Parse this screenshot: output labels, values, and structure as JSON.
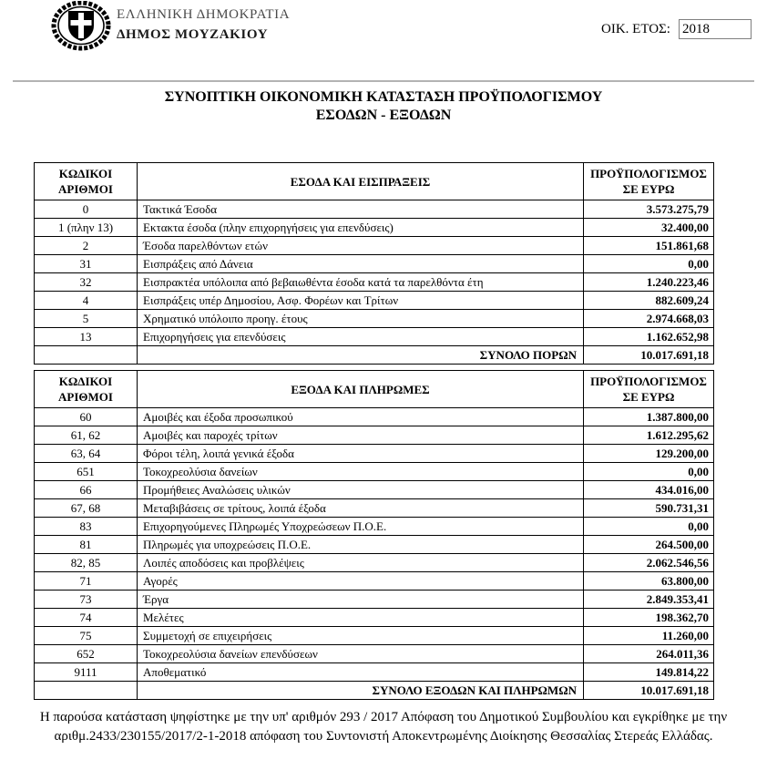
{
  "header": {
    "republic": "ΕΛΛΗΝΙΚΗ ΔΗΜΟΚΡΑΤΙΑ",
    "municipality": "ΔΗΜΟΣ ΜΟΥΖΑΚΙΟΥ",
    "fiscal_year_label": "ΟΙΚ. ΕΤΟΣ:",
    "fiscal_year_value": "2018"
  },
  "title": {
    "line1": "ΣΥΝΟΠΤΙΚΗ ΟΙΚΟΝΟΜΙΚΗ ΚΑΤΑΣΤΑΣΗ ΠΡΟΫΠΟΛΟΓΙΣΜΟΥ",
    "line2": "ΕΣΟΔΩΝ - ΕΞΟΔΩΝ"
  },
  "income_table": {
    "col_code": "ΚΩΔΙΚΟΙ\nΑΡΙΘΜΟΙ",
    "col_desc": "ΕΣΟΔΑ ΚΑΙ ΕΙΣΠΡΑΞΕΙΣ",
    "col_amount": "ΠΡΟΫΠΟΛΟΓΙΣΜΟΣ\nΣΕ ΕΥΡΩ",
    "rows": [
      {
        "code": "0",
        "label": "Τακτικά Έσοδα",
        "amount": "3.573.275,79"
      },
      {
        "code": "1 (πλην 13)",
        "label": "Εκτακτα έσοδα (πλην επιχορηγήσεις για επενδύσεις)",
        "amount": "32.400,00"
      },
      {
        "code": "2",
        "label": "Έσοδα παρελθόντων ετών",
        "amount": "151.861,68"
      },
      {
        "code": "31",
        "label": "Εισπράξεις από Δάνεια",
        "amount": "0,00"
      },
      {
        "code": "32",
        "label": "Εισπρακτέα υπόλοιπα από βεβαιωθέντα έσοδα κατά τα παρελθόντα έτη",
        "amount": "1.240.223,46"
      },
      {
        "code": "4",
        "label": "Εισπράξεις υπέρ Δημοσίου, Ασφ. Φορέων και Τρίτων",
        "amount": "882.609,24"
      },
      {
        "code": "5",
        "label": "Χρηματικό υπόλοιπο προηγ. έτους",
        "amount": "2.974.668,03"
      },
      {
        "code": "13",
        "label": "Επιχορηγήσεις για επενδύσεις",
        "amount": "1.162.652,98"
      }
    ],
    "total_label": "ΣΥΝΟΛΟ ΠΟΡΩΝ",
    "total_amount": "10.017.691,18"
  },
  "expense_table": {
    "col_code": "ΚΩΔΙΚΟΙ\nΑΡΙΘΜΟΙ",
    "col_desc": "ΕΞΟΔΑ ΚΑΙ ΠΛΗΡΩΜΕΣ",
    "col_amount": "ΠΡΟΫΠΟΛΟΓΙΣΜΟΣ\nΣΕ ΕΥΡΩ",
    "rows": [
      {
        "code": "60",
        "label": "Αμοιβές και έξοδα προσωπικού",
        "amount": "1.387.800,00"
      },
      {
        "code": "61, 62",
        "label": "Αμοιβές και παροχές τρίτων",
        "amount": "1.612.295,62"
      },
      {
        "code": "63, 64",
        "label": "Φόροι  τέλη, λοιπά γενικά έξοδα",
        "amount": "129.200,00"
      },
      {
        "code": "651",
        "label": "Τοκοχρεολύσια δανείων",
        "amount": "0,00"
      },
      {
        "code": "66",
        "label": "Προμήθειες  Αναλώσεις υλικών",
        "amount": "434.016,00"
      },
      {
        "code": "67, 68",
        "label": "Μεταβιβάσεις σε τρίτους, λοιπά έξοδα",
        "amount": "590.731,31"
      },
      {
        "code": "83",
        "label": "Επιχορηγούμενες Πληρωμές Υποχρεώσεων Π.Ο.Ε.",
        "amount": "0,00"
      },
      {
        "code": "81",
        "label": "Πληρωμές για υποχρεώσεις Π.Ο.Ε.",
        "amount": "264.500,00"
      },
      {
        "code": "82, 85",
        "label": "Λοιπές αποδόσεις και προβλέψεις",
        "amount": "2.062.546,56"
      },
      {
        "code": "71",
        "label": "Αγορές",
        "amount": "63.800,00"
      },
      {
        "code": "73",
        "label": "Έργα",
        "amount": "2.849.353,41"
      },
      {
        "code": "74",
        "label": "Μελέτες",
        "amount": "198.362,70"
      },
      {
        "code": "75",
        "label": "Συμμετοχή σε επιχειρήσεις",
        "amount": "11.260,00"
      },
      {
        "code": "652",
        "label": "Τοκοχρεολύσια δανείων επενδύσεων",
        "amount": "264.011,36"
      },
      {
        "code": "9111",
        "label": "Αποθεματικό",
        "amount": "149.814,22"
      }
    ],
    "total_label": "ΣΥΝΟΛΟ ΕΞΟΔΩΝ ΚΑΙ ΠΛΗΡΩΜΩΝ",
    "total_amount": "10.017.691,18"
  },
  "footer": {
    "text": "Η παρούσα κατάσταση ψηφίστηκε με την υπ' αριθμόν 293 / 2017 Απόφαση του Δημοτικού Συμβουλίου και εγκρίθηκε με την αριθμ.2433/230155/2017/2-1-2018 απόφαση του Συντονιστή Αποκεντρωμένης Διοίκησης Θεσσαλίας Στερεάς Ελλάδας."
  }
}
